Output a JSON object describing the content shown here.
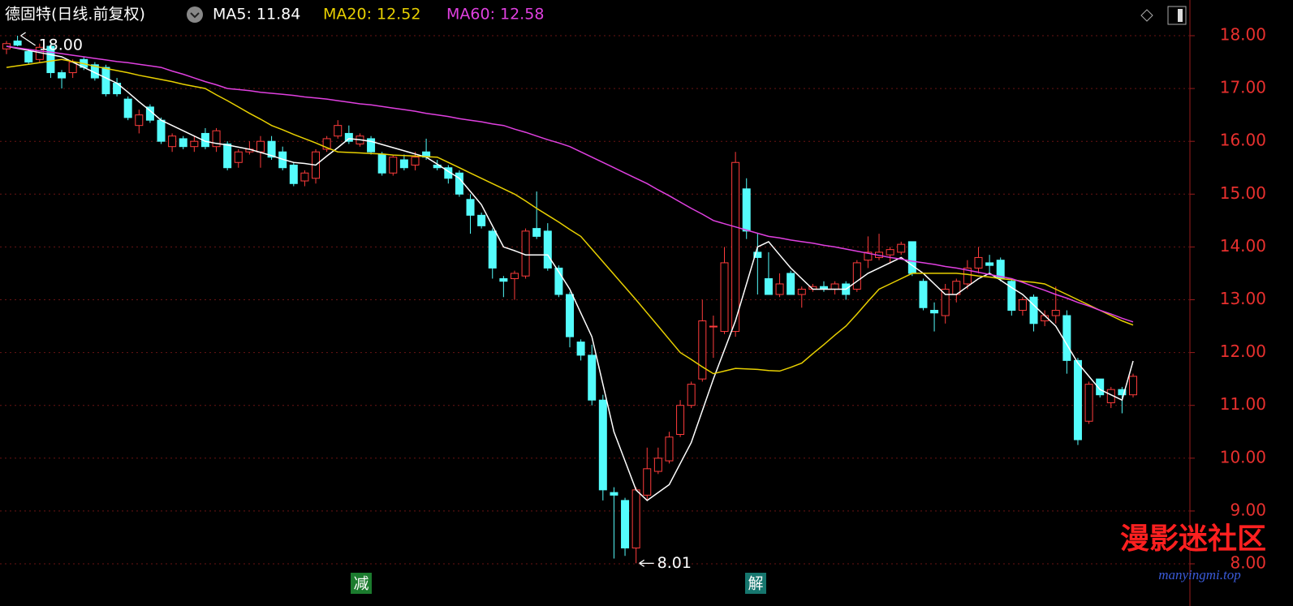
{
  "chart_data": {
    "type": "candlestick",
    "title": "德固特(日线.前复权)",
    "up_color": "#ff3c3c",
    "down_color": "#54fcfc",
    "ylim": [
      7.85,
      18.35
    ],
    "yticks": [
      {
        "value": 8,
        "label": "8.00"
      },
      {
        "value": 9,
        "label": "9.00"
      },
      {
        "value": 10,
        "label": "10.00"
      },
      {
        "value": 11,
        "label": "11.00"
      },
      {
        "value": 12,
        "label": "12.00"
      },
      {
        "value": 13,
        "label": "13.00"
      },
      {
        "value": 14,
        "label": "14.00"
      },
      {
        "value": 15,
        "label": "15.00"
      },
      {
        "value": 16,
        "label": "16.00"
      },
      {
        "value": 17,
        "label": "17.00"
      },
      {
        "value": 18,
        "label": "18.00"
      }
    ],
    "grid": true,
    "open": [
      17.75,
      17.9,
      17.7,
      17.55,
      17.8,
      17.3,
      17.3,
      17.55,
      17.45,
      17.4,
      17.1,
      16.8,
      16.3,
      16.65,
      16.4,
      15.9,
      16.05,
      15.9,
      16.15,
      15.9,
      15.95,
      15.6,
      15.8,
      15.8,
      16.0,
      15.8,
      15.55,
      15.25,
      15.3,
      15.85,
      16.1,
      16.15,
      15.95,
      16.05,
      15.75,
      15.4,
      15.65,
      15.55,
      15.8,
      15.55,
      15.5,
      15.4,
      14.9,
      14.6,
      14.3,
      13.4,
      13.4,
      13.45,
      14.35,
      14.3,
      13.6,
      13.1,
      12.2,
      11.95,
      11.1,
      9.35,
      9.2,
      8.3,
      9.3,
      9.75,
      9.95,
      10.45,
      11.0,
      11.5,
      12.5,
      12.4,
      12.4,
      15.1,
      13.9,
      13.4,
      13.1,
      13.5,
      13.1,
      13.2,
      13.25,
      13.2,
      13.3,
      13.2,
      13.75,
      13.8,
      13.85,
      13.9,
      14.1,
      13.35,
      12.8,
      12.7,
      13.1,
      13.3,
      13.6,
      13.7,
      13.75,
      13.35,
      12.8,
      13.05,
      12.6,
      12.7,
      12.7,
      11.85,
      10.7,
      11.5,
      11.05,
      11.3,
      11.2
    ],
    "high": [
      17.9,
      18.0,
      17.75,
      17.85,
      17.85,
      17.35,
      17.55,
      17.6,
      17.5,
      17.45,
      17.2,
      16.85,
      16.6,
      16.7,
      16.45,
      16.15,
      16.1,
      16.1,
      16.25,
      16.25,
      16.0,
      15.85,
      16.0,
      16.1,
      16.1,
      15.9,
      15.6,
      15.45,
      15.85,
      16.1,
      16.4,
      16.3,
      16.15,
      16.1,
      15.8,
      15.75,
      15.75,
      15.8,
      16.05,
      15.65,
      15.55,
      15.45,
      15.0,
      14.65,
      14.35,
      13.45,
      13.55,
      14.35,
      15.05,
      14.45,
      13.65,
      13.15,
      12.25,
      12.15,
      11.2,
      9.45,
      9.25,
      9.45,
      10.2,
      10.2,
      10.5,
      11.1,
      11.45,
      13.0,
      12.7,
      14.0,
      15.8,
      15.3,
      14.25,
      13.9,
      13.5,
      13.55,
      13.25,
      13.3,
      13.35,
      13.35,
      13.35,
      13.75,
      14.2,
      14.25,
      14.0,
      14.1,
      14.1,
      13.4,
      12.95,
      13.3,
      13.4,
      13.75,
      14.0,
      13.85,
      13.8,
      13.4,
      13.05,
      13.1,
      12.8,
      13.25,
      12.8,
      11.9,
      11.45,
      11.5,
      11.35,
      11.35,
      11.6
    ],
    "low": [
      17.65,
      17.8,
      17.45,
      17.5,
      17.2,
      17.0,
      17.2,
      17.35,
      17.15,
      16.85,
      16.85,
      16.4,
      16.15,
      16.35,
      15.95,
      15.8,
      15.85,
      15.8,
      15.85,
      15.8,
      15.45,
      15.5,
      15.75,
      15.5,
      15.65,
      15.45,
      15.15,
      15.15,
      15.2,
      15.8,
      16.05,
      15.95,
      15.9,
      15.75,
      15.35,
      15.35,
      15.45,
      15.45,
      15.65,
      15.45,
      15.2,
      14.95,
      14.25,
      14.35,
      13.4,
      13.05,
      13.0,
      13.4,
      14.15,
      13.55,
      13.05,
      12.1,
      11.85,
      11.0,
      9.2,
      8.1,
      8.15,
      8.01,
      9.2,
      9.7,
      9.9,
      10.4,
      10.95,
      11.45,
      11.9,
      12.35,
      12.3,
      14.15,
      13.1,
      13.1,
      13.05,
      13.1,
      12.85,
      13.15,
      13.15,
      13.1,
      13.0,
      13.15,
      13.6,
      13.75,
      13.7,
      13.85,
      13.45,
      12.8,
      12.4,
      12.55,
      12.95,
      13.2,
      13.5,
      13.5,
      13.35,
      12.7,
      12.7,
      12.4,
      12.5,
      12.55,
      11.6,
      10.25,
      10.65,
      11.15,
      10.95,
      10.85,
      11.15
    ],
    "close": [
      17.85,
      17.82,
      17.5,
      17.78,
      17.3,
      17.2,
      17.5,
      17.4,
      17.2,
      16.9,
      16.9,
      16.45,
      16.5,
      16.4,
      16.0,
      16.1,
      15.9,
      16.0,
      15.9,
      16.2,
      15.5,
      15.8,
      15.85,
      16.0,
      15.7,
      15.5,
      15.2,
      15.4,
      15.8,
      16.05,
      16.3,
      16.0,
      16.1,
      15.8,
      15.4,
      15.7,
      15.5,
      15.7,
      15.7,
      15.5,
      15.3,
      15.0,
      14.6,
      14.4,
      13.6,
      13.35,
      13.5,
      14.3,
      14.2,
      13.6,
      13.1,
      12.3,
      11.95,
      11.1,
      9.4,
      9.3,
      8.3,
      9.4,
      9.8,
      10.0,
      10.4,
      11.0,
      11.4,
      12.6,
      12.5,
      13.7,
      15.6,
      14.3,
      13.8,
      13.1,
      13.3,
      13.1,
      13.2,
      13.25,
      13.2,
      13.3,
      13.1,
      13.7,
      13.9,
      13.9,
      13.95,
      14.05,
      13.5,
      12.85,
      12.75,
      13.2,
      13.35,
      13.6,
      13.8,
      13.65,
      13.4,
      12.8,
      13.0,
      12.55,
      12.7,
      12.8,
      11.85,
      10.35,
      11.4,
      11.2,
      11.3,
      11.2,
      11.55
    ],
    "series": [
      {
        "name": "MA5",
        "legend": "MA5: 11.84",
        "color": "#ffffff",
        "values": [
          17.8,
          17.76,
          17.72,
          17.68,
          17.64,
          17.6,
          17.5,
          17.4,
          17.3,
          17.2,
          17.1,
          16.93,
          16.75,
          16.58,
          16.4,
          16.3,
          16.2,
          16.1,
          16.0,
          15.96,
          15.93,
          15.89,
          15.85,
          15.79,
          15.73,
          15.66,
          15.6,
          15.58,
          15.55,
          15.72,
          15.88,
          16.05,
          16.03,
          16.0,
          15.94,
          15.88,
          15.82,
          15.76,
          15.7,
          15.57,
          15.43,
          15.3,
          15.05,
          14.8,
          14.4,
          14.0,
          13.93,
          13.85,
          13.85,
          13.85,
          13.53,
          13.2,
          12.75,
          12.3,
          11.4,
          10.5,
          9.95,
          9.4,
          9.2,
          9.35,
          9.5,
          9.9,
          10.3,
          10.9,
          11.5,
          12.05,
          12.6,
          13.3,
          14.0,
          14.1,
          13.85,
          13.6,
          13.4,
          13.2,
          13.2,
          13.2,
          13.2,
          13.35,
          13.5,
          13.6,
          13.7,
          13.8,
          13.65,
          13.5,
          13.3,
          13.1,
          13.1,
          13.25,
          13.4,
          13.5,
          13.37,
          13.23,
          13.1,
          12.9,
          12.7,
          12.5,
          12.15,
          11.8,
          11.55,
          11.3,
          11.2,
          11.1,
          11.84
        ]
      },
      {
        "name": "MA20",
        "legend": "MA20: 12.52",
        "color": "#e8d000",
        "values": [
          17.4,
          17.43,
          17.46,
          17.49,
          17.52,
          17.55,
          17.51,
          17.47,
          17.42,
          17.38,
          17.34,
          17.3,
          17.25,
          17.21,
          17.17,
          17.13,
          17.08,
          17.04,
          17.0,
          16.88,
          16.77,
          16.65,
          16.53,
          16.42,
          16.3,
          16.22,
          16.13,
          16.05,
          15.97,
          15.88,
          15.8,
          15.79,
          15.78,
          15.77,
          15.76,
          15.74,
          15.73,
          15.72,
          15.71,
          15.7,
          15.6,
          15.5,
          15.4,
          15.3,
          15.2,
          15.1,
          15.0,
          14.87,
          14.73,
          14.6,
          14.47,
          14.33,
          14.2,
          13.96,
          13.72,
          13.48,
          13.24,
          13.0,
          12.75,
          12.5,
          12.25,
          12.0,
          11.87,
          11.73,
          11.6,
          11.65,
          11.7,
          11.69,
          11.68,
          11.66,
          11.65,
          11.72,
          11.8,
          11.98,
          12.15,
          12.33,
          12.5,
          12.73,
          12.97,
          13.2,
          13.3,
          13.4,
          13.5,
          13.5,
          13.5,
          13.5,
          13.5,
          13.48,
          13.45,
          13.43,
          13.4,
          13.38,
          13.35,
          13.33,
          13.3,
          13.2,
          13.1,
          13.0,
          12.9,
          12.8,
          12.7,
          12.6,
          12.52
        ]
      },
      {
        "name": "MA60",
        "legend": "MA60: 12.58",
        "color": "#e040e0",
        "values": [
          17.8,
          17.77,
          17.74,
          17.71,
          17.69,
          17.66,
          17.63,
          17.6,
          17.57,
          17.54,
          17.51,
          17.49,
          17.46,
          17.43,
          17.4,
          17.33,
          17.27,
          17.2,
          17.13,
          17.07,
          17.0,
          16.98,
          16.96,
          16.93,
          16.91,
          16.89,
          16.87,
          16.84,
          16.82,
          16.8,
          16.77,
          16.74,
          16.71,
          16.69,
          16.66,
          16.63,
          16.6,
          16.57,
          16.53,
          16.5,
          16.47,
          16.43,
          16.4,
          16.37,
          16.33,
          16.3,
          16.23,
          16.17,
          16.1,
          16.03,
          15.97,
          15.9,
          15.8,
          15.7,
          15.6,
          15.5,
          15.4,
          15.3,
          15.2,
          15.08,
          14.97,
          14.85,
          14.73,
          14.62,
          14.5,
          14.44,
          14.38,
          14.32,
          14.26,
          14.2,
          14.17,
          14.13,
          14.1,
          14.07,
          14.03,
          14.0,
          13.96,
          13.92,
          13.88,
          13.84,
          13.8,
          13.77,
          13.73,
          13.7,
          13.67,
          13.63,
          13.6,
          13.56,
          13.52,
          13.48,
          13.44,
          13.4,
          13.33,
          13.25,
          13.18,
          13.1,
          13.03,
          12.95,
          12.88,
          12.8,
          12.73,
          12.65,
          12.58
        ]
      }
    ],
    "annotations": [
      {
        "value": 18.0,
        "label": "18.00",
        "at": "high"
      },
      {
        "value": 8.01,
        "label": "8.01",
        "at": "low"
      }
    ],
    "markers": [
      "减",
      "解"
    ],
    "watermark": [
      "漫影迷社区",
      "manyingmi.top"
    ]
  }
}
